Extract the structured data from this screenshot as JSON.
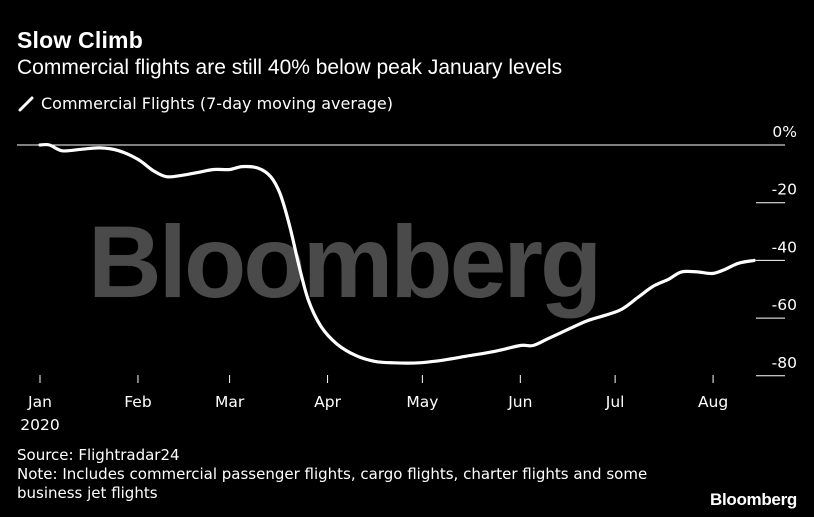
{
  "header": {
    "title": "Slow Climb",
    "subtitle": "Commercial flights are still 40% below peak January levels"
  },
  "legend": {
    "label": "Commercial Flights (7-day moving average)",
    "color": "#ffffff"
  },
  "watermark": "Bloomberg",
  "footer": {
    "source": "Source: Flightradar24",
    "note": "Note: Includes commercial passenger flights, cargo flights, charter flights and some business jet flights",
    "brand": "Bloomberg"
  },
  "colors": {
    "background": "#000000",
    "line": "#ffffff",
    "watermark": "#4a4a4a"
  },
  "chart_data": {
    "type": "line",
    "title": "Slow Climb",
    "subtitle": "Commercial flights are still 40% below peak January levels",
    "xlabel": "",
    "ylabel": "",
    "x_ticks": [
      {
        "label": "Jan",
        "sublabel": "2020",
        "date": "2020-01-01"
      },
      {
        "label": "Feb",
        "date": "2020-02-01"
      },
      {
        "label": "Mar",
        "date": "2020-03-01"
      },
      {
        "label": "Apr",
        "date": "2020-04-01"
      },
      {
        "label": "May",
        "date": "2020-05-01"
      },
      {
        "label": "Jun",
        "date": "2020-06-01"
      },
      {
        "label": "Jul",
        "date": "2020-07-01"
      },
      {
        "label": "Aug",
        "date": "2020-08-01"
      }
    ],
    "y_ticks": [
      {
        "value": 0,
        "label": "0%"
      },
      {
        "value": -20,
        "label": "-20"
      },
      {
        "value": -40,
        "label": "-40"
      },
      {
        "value": -60,
        "label": "-60"
      },
      {
        "value": -80,
        "label": "-80"
      }
    ],
    "xlim": [
      "2020-01-01",
      "2020-08-14"
    ],
    "ylim": [
      -80,
      0
    ],
    "y_axis_position": "right",
    "grid": false,
    "legend_position": "top-left",
    "series": [
      {
        "name": "Commercial Flights (7-day moving average)",
        "color": "#ffffff",
        "points": [
          {
            "date": "2020-01-01",
            "value": 0
          },
          {
            "date": "2020-01-04",
            "value": 0
          },
          {
            "date": "2020-01-08",
            "value": -2
          },
          {
            "date": "2020-01-14",
            "value": -1.5
          },
          {
            "date": "2020-01-20",
            "value": -1
          },
          {
            "date": "2020-01-26",
            "value": -2
          },
          {
            "date": "2020-02-01",
            "value": -5
          },
          {
            "date": "2020-02-06",
            "value": -9
          },
          {
            "date": "2020-02-10",
            "value": -11
          },
          {
            "date": "2020-02-15",
            "value": -10.5
          },
          {
            "date": "2020-02-20",
            "value": -9.5
          },
          {
            "date": "2020-02-25",
            "value": -8.5
          },
          {
            "date": "2020-03-01",
            "value": -8.5
          },
          {
            "date": "2020-03-05",
            "value": -7.5
          },
          {
            "date": "2020-03-10",
            "value": -8
          },
          {
            "date": "2020-03-14",
            "value": -11
          },
          {
            "date": "2020-03-17",
            "value": -17
          },
          {
            "date": "2020-03-20",
            "value": -28
          },
          {
            "date": "2020-03-23",
            "value": -42
          },
          {
            "date": "2020-03-26",
            "value": -54
          },
          {
            "date": "2020-03-30",
            "value": -63
          },
          {
            "date": "2020-04-04",
            "value": -69
          },
          {
            "date": "2020-04-10",
            "value": -73
          },
          {
            "date": "2020-04-16",
            "value": -75
          },
          {
            "date": "2020-04-22",
            "value": -75.5
          },
          {
            "date": "2020-04-30",
            "value": -75.5
          },
          {
            "date": "2020-05-08",
            "value": -74.5
          },
          {
            "date": "2020-05-16",
            "value": -73
          },
          {
            "date": "2020-05-24",
            "value": -71.5
          },
          {
            "date": "2020-06-01",
            "value": -69.5
          },
          {
            "date": "2020-06-05",
            "value": -69.5
          },
          {
            "date": "2020-06-10",
            "value": -67
          },
          {
            "date": "2020-06-16",
            "value": -64
          },
          {
            "date": "2020-06-22",
            "value": -61
          },
          {
            "date": "2020-06-28",
            "value": -59
          },
          {
            "date": "2020-07-03",
            "value": -57
          },
          {
            "date": "2020-07-08",
            "value": -53
          },
          {
            "date": "2020-07-13",
            "value": -49
          },
          {
            "date": "2020-07-18",
            "value": -46.5
          },
          {
            "date": "2020-07-22",
            "value": -44
          },
          {
            "date": "2020-07-27",
            "value": -44
          },
          {
            "date": "2020-08-01",
            "value": -44.5
          },
          {
            "date": "2020-08-05",
            "value": -43
          },
          {
            "date": "2020-08-09",
            "value": -41
          },
          {
            "date": "2020-08-14",
            "value": -40
          }
        ]
      }
    ]
  }
}
